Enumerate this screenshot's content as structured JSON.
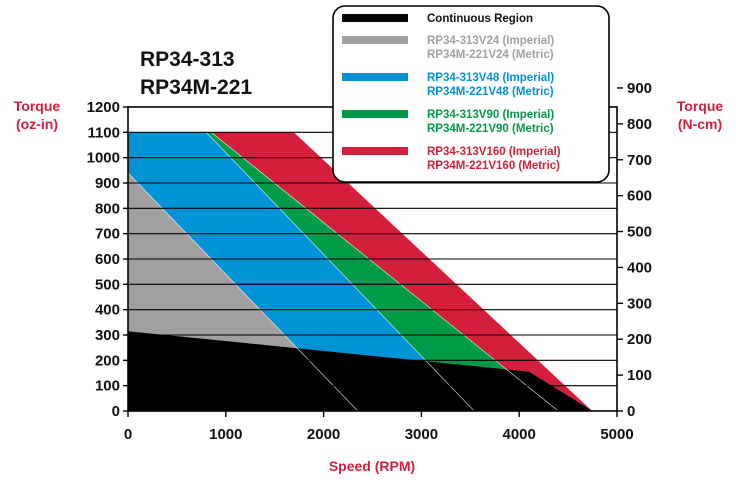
{
  "chart_data": {
    "type": "area",
    "title_lines": [
      "RP34-313",
      "RP34M-221"
    ],
    "xlabel": "Speed (RPM)",
    "ylabel_left": [
      "Torque",
      "(oz-in)"
    ],
    "ylabel_right": [
      "Torque",
      "(N-cm)"
    ],
    "xlim": [
      0,
      5000
    ],
    "ylim": [
      0,
      1200
    ],
    "ylim_right": [
      0,
      847
    ],
    "x_ticks": [
      0,
      1000,
      2000,
      3000,
      4000,
      5000
    ],
    "y_ticks": [
      0,
      100,
      200,
      300,
      400,
      500,
      600,
      700,
      800,
      900,
      1000,
      1100,
      1200
    ],
    "y_ticks_right": [
      0,
      100,
      200,
      300,
      400,
      500,
      600,
      700,
      800,
      900
    ],
    "grid": "horizontal",
    "legend_position": "top-right",
    "series": [
      {
        "name_lines": [
          "RP34-313V160 (Imperial)",
          "RP34M-221V160 (Metric)"
        ],
        "color": "#d31f3b",
        "x": [
          0,
          1700,
          4750
        ],
        "y": [
          1100,
          1100,
          0
        ]
      },
      {
        "name_lines": [
          "RP34-313V90 (Imperial)",
          "RP34M-221V90 (Metric)"
        ],
        "color": "#009a48",
        "x": [
          0,
          850,
          4400
        ],
        "y": [
          1100,
          1100,
          0
        ]
      },
      {
        "name_lines": [
          "RP34-313V48 (Imperial)",
          "RP34M-221V48 (Metric)"
        ],
        "color": "#0093d6",
        "x": [
          0,
          800,
          3540
        ],
        "y": [
          1100,
          1100,
          0
        ]
      },
      {
        "name_lines": [
          "RP34-313V24 (Imperial)",
          "RP34M-221V24 (Metric)"
        ],
        "color": "#a0a0a0",
        "x": [
          0,
          2350
        ],
        "y": [
          940,
          0
        ]
      },
      {
        "name_lines": [
          "Continuous Region"
        ],
        "color": "#000000",
        "x": [
          0,
          4100,
          4750
        ],
        "y": [
          315,
          155,
          0
        ]
      }
    ]
  }
}
